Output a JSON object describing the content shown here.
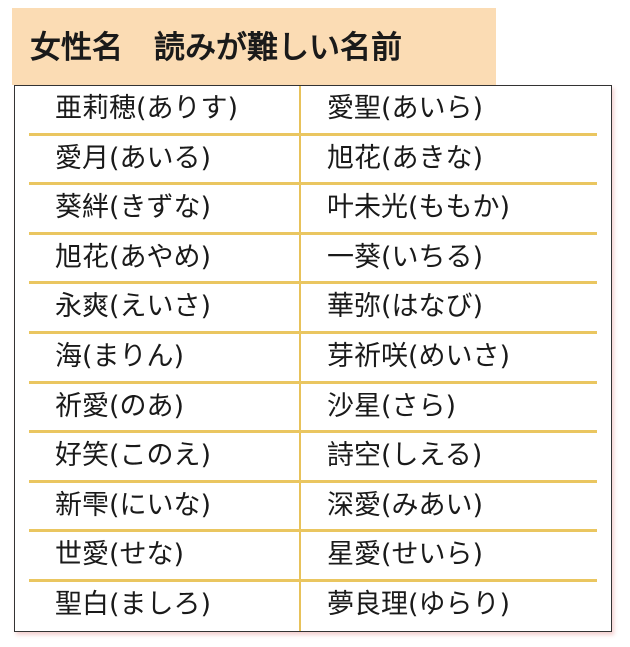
{
  "title": "女性名　読みが難しい名前",
  "colors": {
    "title_bg": "#fbdcb4",
    "row_line": "#eac660",
    "border": "#333333"
  },
  "rows": [
    [
      "亜莉穂(ありす)",
      "愛聖(あいら)"
    ],
    [
      "愛月(あいる)",
      "旭花(あきな)"
    ],
    [
      "葵絆(きずな)",
      "叶未光(ももか)"
    ],
    [
      "旭花(あやめ)",
      "一葵(いちる)"
    ],
    [
      "永爽(えいさ)",
      "華弥(はなび)"
    ],
    [
      "海(まりん)",
      "芽祈咲(めいさ)"
    ],
    [
      "祈愛(のあ)",
      "沙星(さら)"
    ],
    [
      "好笑(このえ)",
      "詩空(しえる)"
    ],
    [
      "新雫(にいな)",
      "深愛(みあい)"
    ],
    [
      "世愛(せな)",
      "星愛(せいら)"
    ],
    [
      "聖白(ましろ)",
      "夢良理(ゆらり)"
    ]
  ]
}
